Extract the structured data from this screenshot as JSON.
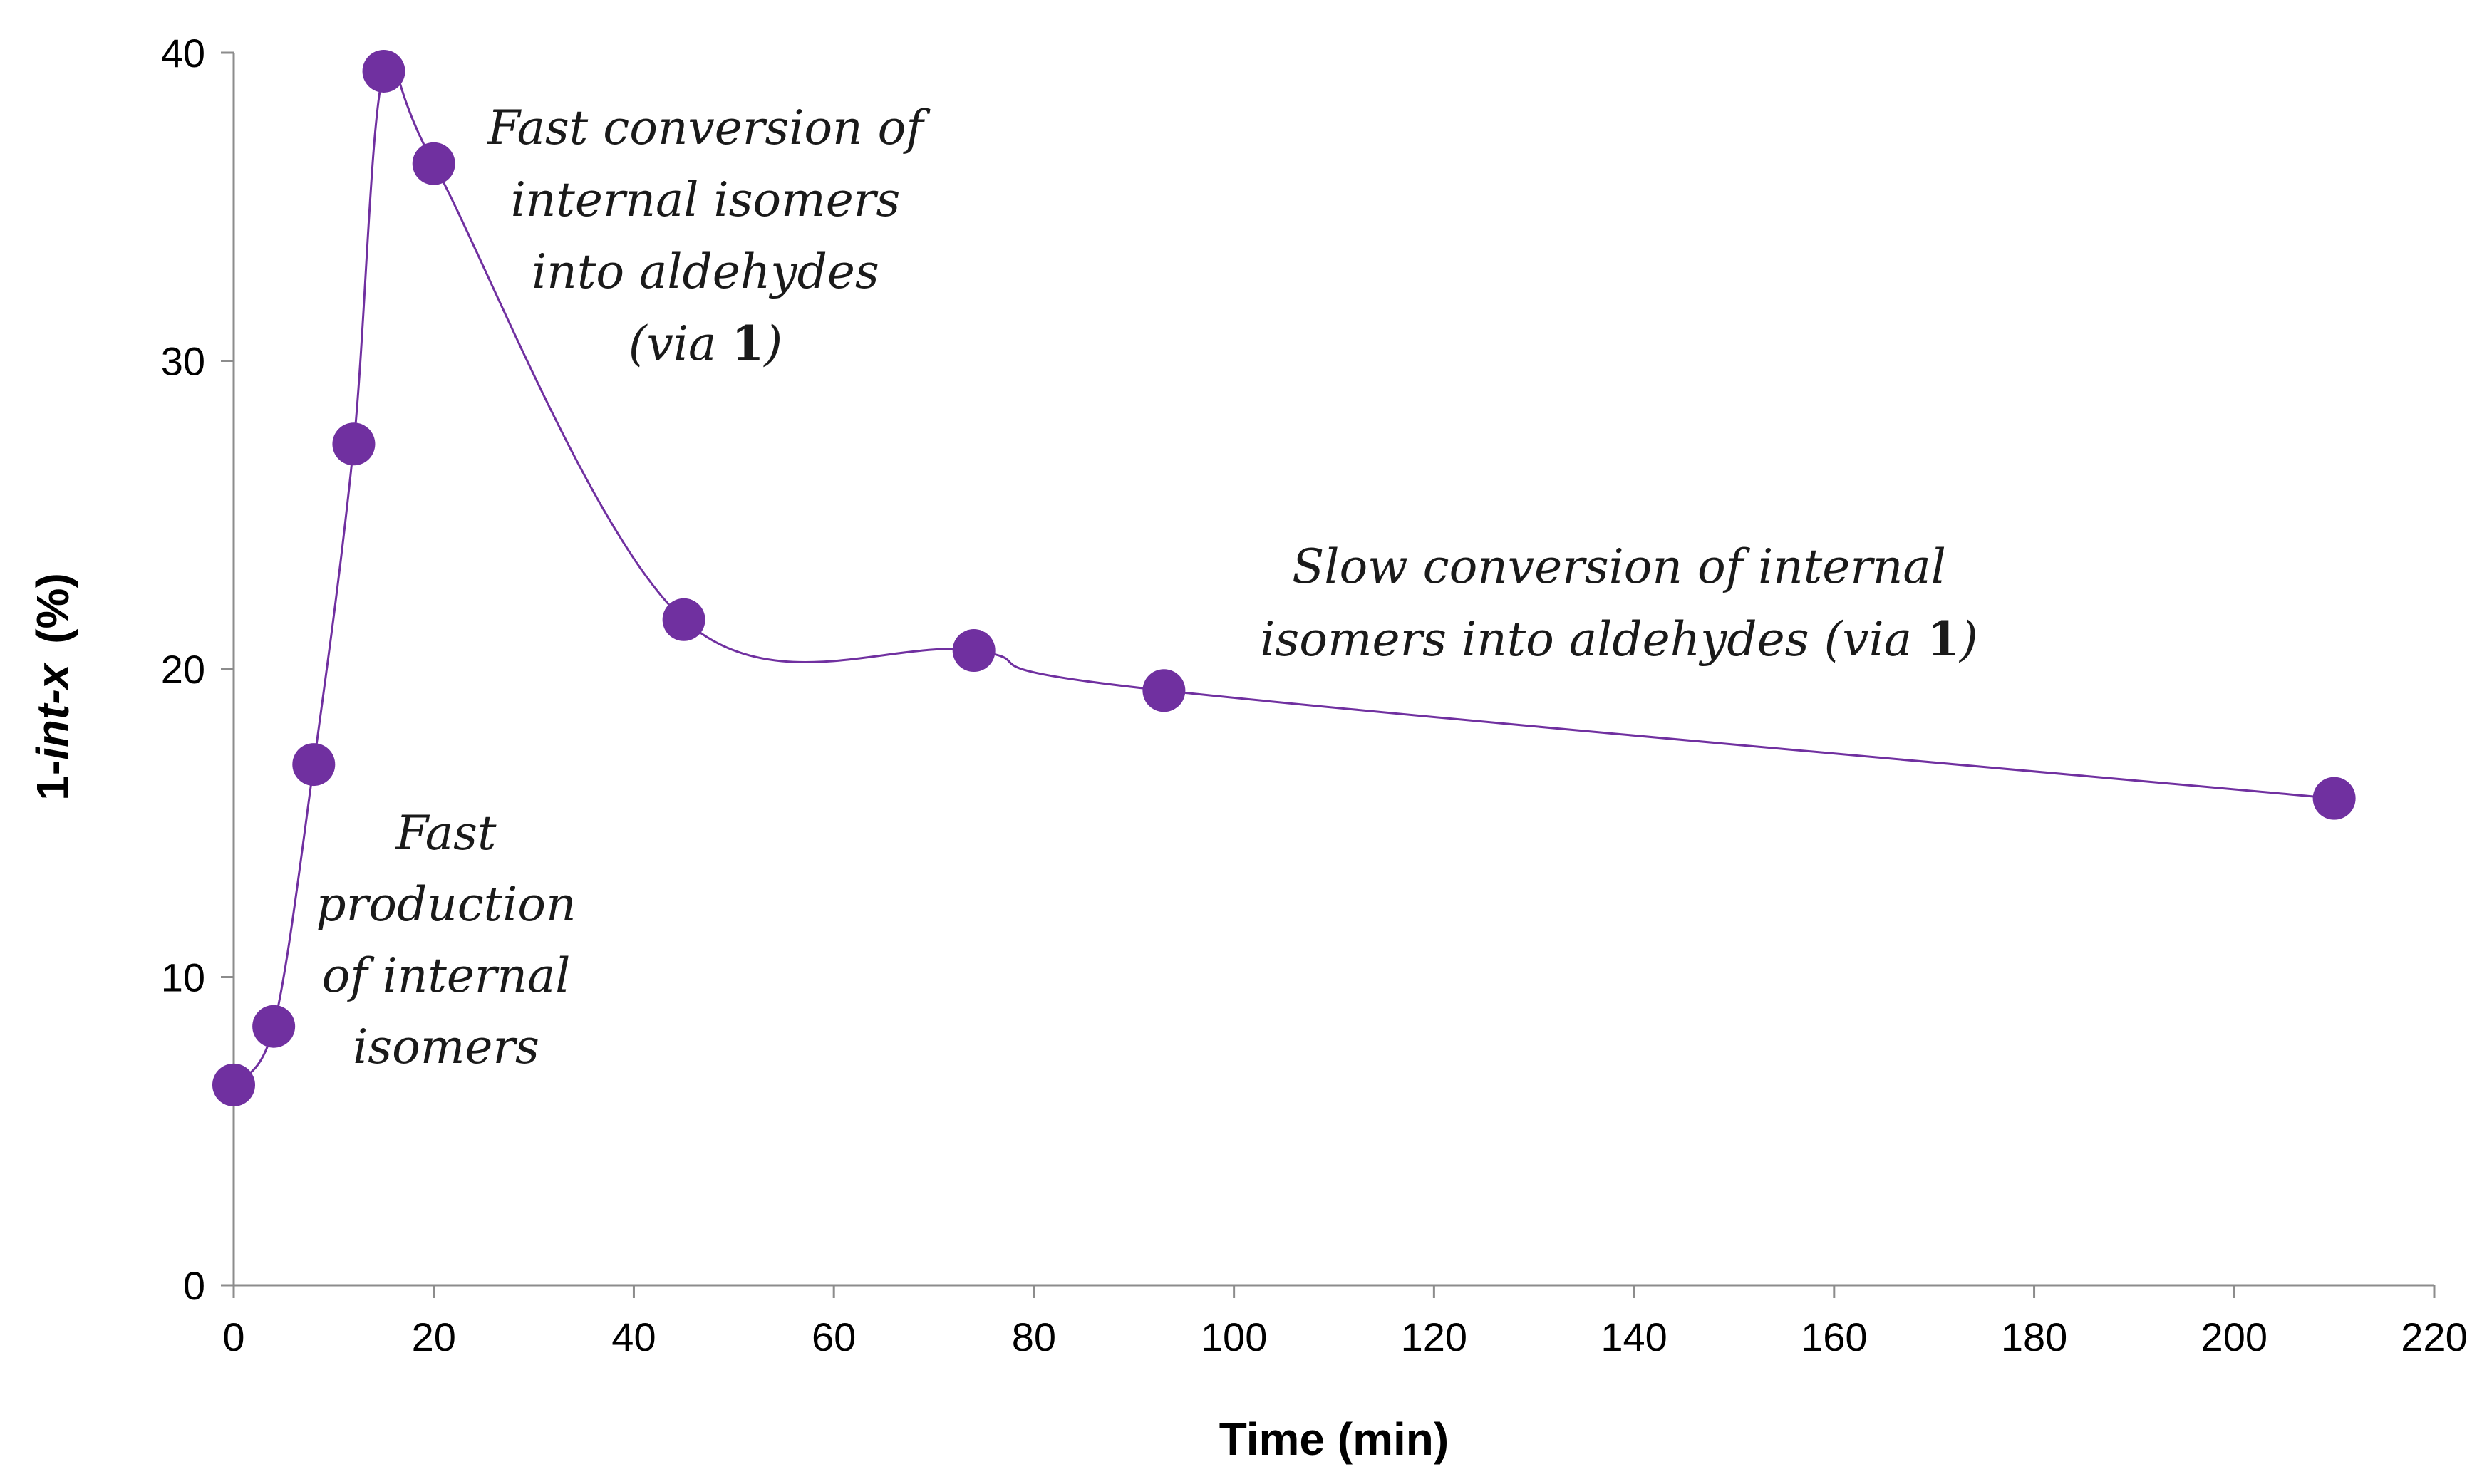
{
  "chart_data": {
    "type": "scatter",
    "title": "",
    "xlabel": "Time (min)",
    "ylabel": {
      "prefix": "1-",
      "italic": "int-x",
      "suffix": "(%)"
    },
    "xlim": [
      0,
      220
    ],
    "ylim": [
      0,
      40
    ],
    "x_ticks": [
      0,
      20,
      40,
      60,
      80,
      100,
      120,
      140,
      160,
      180,
      200,
      220
    ],
    "y_ticks": [
      0,
      10,
      20,
      30,
      40
    ],
    "grid": false,
    "legend": "none",
    "series": [
      {
        "name": "1-int-x",
        "marker": "circle",
        "line": "smooth",
        "x": [
          0,
          4,
          8,
          12,
          15,
          20,
          45,
          74,
          93,
          210
        ],
        "y": [
          6.5,
          8.4,
          16.9,
          27.3,
          39.4,
          36.4,
          21.6,
          20.6,
          19.3,
          15.8
        ]
      }
    ],
    "annotations": [
      {
        "id": "fast-production",
        "anchor": "middle",
        "lines": [
          [
            {
              "t": "Fast"
            }
          ],
          [
            {
              "t": "production"
            }
          ],
          [
            {
              "t": "of internal"
            }
          ],
          [
            {
              "t": "isomers"
            }
          ]
        ]
      },
      {
        "id": "fast-conversion",
        "anchor": "middle",
        "lines": [
          [
            {
              "t": "Fast conversion of"
            }
          ],
          [
            {
              "t": "internal isomers"
            }
          ],
          [
            {
              "t": "into aldehydes"
            }
          ],
          [
            {
              "t": "(via "
            },
            {
              "t": "1",
              "bold": true
            },
            {
              "t": ")"
            }
          ]
        ]
      },
      {
        "id": "slow-conversion",
        "anchor": "middle",
        "lines": [
          [
            {
              "t": "Slow conversion of internal"
            }
          ],
          [
            {
              "t": "isomers into aldehydes (via "
            },
            {
              "t": "1",
              "bold": true
            },
            {
              "t": ")"
            }
          ]
        ]
      }
    ]
  },
  "colors": {
    "marker": "#7030A0",
    "line": "#7030A0",
    "axis": "#8c8c8c",
    "text": "#000000"
  }
}
